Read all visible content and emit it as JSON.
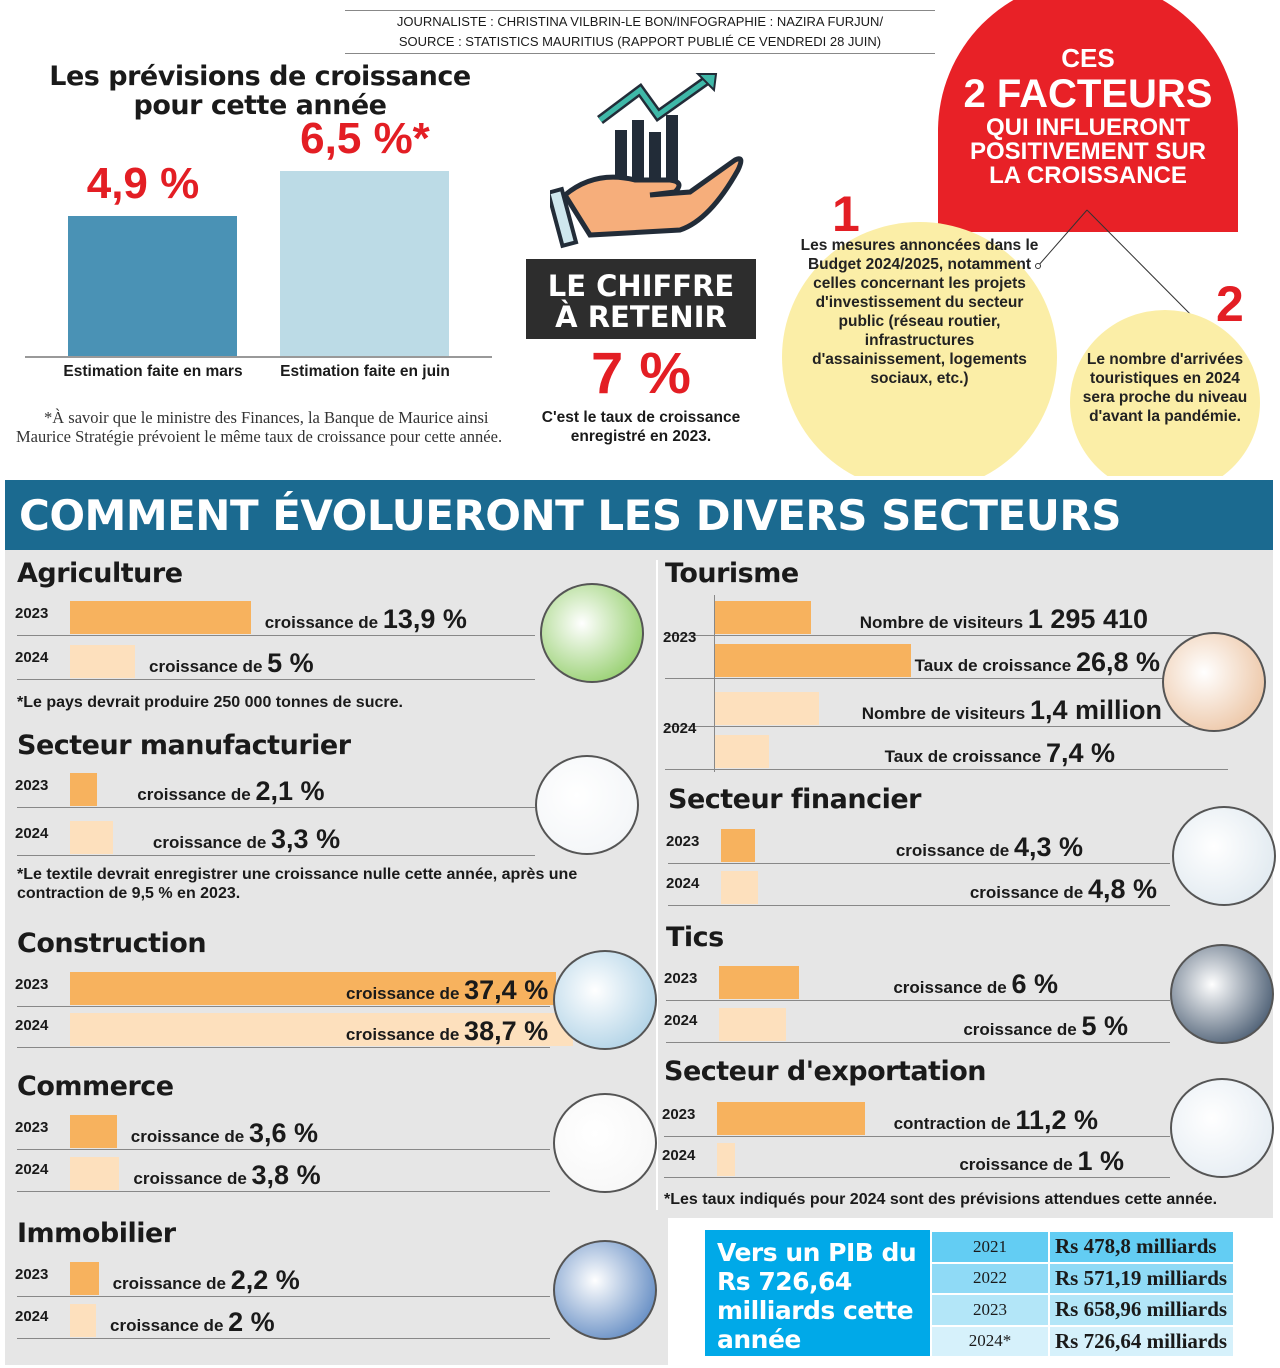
{
  "credit": {
    "line1": "JOURNALISTE : CHRISTINA VILBRIN-LE BON/INFOGRAPHIE : NAZIRA FURJUN/",
    "line2": "SOURCE : STATISTICS MAURITIUS (RAPPORT PUBLIÉ CE VENDREDI 28 JUIN)"
  },
  "forecast": {
    "title_line1": "Les prévisions de croissance",
    "title_line2": "pour cette année",
    "note": "*À savoir que le ministre des Finances, la Banque de Maurice ainsi Maurice Stratégie prévoient le même taux de croissance pour cette année."
  },
  "key_figure": {
    "label_line1": "LE CHIFFRE",
    "label_line2": "À RETENIR",
    "value": "7 %",
    "caption": "C'est le taux de croissance enregistré en 2023."
  },
  "factors": {
    "title_line1": "CES",
    "title_line2": "2 FACTEURS",
    "title_line3": "QUI INFLUERONT POSITIVEMENT SUR LA CROISSANCE",
    "items": [
      {
        "number": "1",
        "text": "Les mesures annoncées dans le Budget 2024/2025, notamment celles concernant les projets d'investissement du secteur public (réseau routier, infrastructures d'assainissement, logements sociaux, etc.)"
      },
      {
        "number": "2",
        "text": "Le nombre d'arrivées touristiques en 2024 sera proche du niveau d'avant la pandémie."
      }
    ]
  },
  "banner": "COMMENT ÉVOLUERONT LES DIVERS SECTEURS",
  "colors": {
    "bar_2023": "#f7b25e",
    "bar_2024": "#fde0bd",
    "banner": "#1b6a90",
    "accent_red": "#e31e24",
    "forecast_march": "#4a92b5",
    "forecast_june": "#bcdbe6",
    "pib_box": "#00a9e8"
  },
  "pib": {
    "title": "Vers un PIB du Rs 726,64 milliards cette année",
    "rows": [
      {
        "year": "2021",
        "value": "Rs 478,8 milliards"
      },
      {
        "year": "2022",
        "value": "Rs 571,19 milliards"
      },
      {
        "year": "2023",
        "value": "Rs 658,96 milliards"
      },
      {
        "year": "2024*",
        "value": "Rs 726,64 milliards"
      }
    ]
  },
  "chart_data": [
    {
      "type": "bar",
      "title": "Les prévisions de croissance pour cette année",
      "categories": [
        "Estimation faite en mars",
        "Estimation faite en juin"
      ],
      "values": [
        4.9,
        6.5
      ],
      "data_labels": [
        "4,9 %",
        "6,5 %*"
      ],
      "unit": "%"
    },
    {
      "type": "bar",
      "sectors": [
        {
          "name": "Agriculture",
          "rows": [
            {
              "year": "2023",
              "prefix": "croissance de",
              "value": 13.9,
              "label": "13,9 %"
            },
            {
              "year": "2024",
              "prefix": "croissance de",
              "value": 5,
              "label": "5 %"
            }
          ],
          "note": "*Le pays devrait produire 250 000 tonnes de sucre."
        },
        {
          "name": "Secteur manufacturier",
          "rows": [
            {
              "year": "2023",
              "prefix": "croissance de",
              "value": 2.1,
              "label": "2,1 %"
            },
            {
              "year": "2024",
              "prefix": "croissance de",
              "value": 3.3,
              "label": "3,3 %"
            }
          ],
          "note": "*Le textile devrait enregistrer une croissance nulle cette année, après une contraction de 9,5 % en 2023."
        },
        {
          "name": "Construction",
          "rows": [
            {
              "year": "2023",
              "prefix": "croissance de",
              "value": 37.4,
              "label": "37,4 %"
            },
            {
              "year": "2024",
              "prefix": "croissance de",
              "value": 38.7,
              "label": "38,7 %"
            }
          ]
        },
        {
          "name": "Commerce",
          "rows": [
            {
              "year": "2023",
              "prefix": "croissance de",
              "value": 3.6,
              "label": "3,6 %"
            },
            {
              "year": "2024",
              "prefix": "croissance de",
              "value": 3.8,
              "label": "3,8 %"
            }
          ]
        },
        {
          "name": "Immobilier",
          "rows": [
            {
              "year": "2023",
              "prefix": "croissance de",
              "value": 2.2,
              "label": "2,2 %"
            },
            {
              "year": "2024",
              "prefix": "croissance de",
              "value": 2,
              "label": "2 %"
            }
          ]
        },
        {
          "name": "Tourisme",
          "rows": [
            {
              "year": "2023",
              "prefix": "Nombre de visiteurs",
              "value": 1295410,
              "label": "1 295 410"
            },
            {
              "year": "",
              "prefix": "Taux de croissance",
              "value": 26.8,
              "label": "26,8 %"
            },
            {
              "year": "2024",
              "prefix": "Nombre de visiteurs",
              "value": 1400000,
              "label": "1,4 million"
            },
            {
              "year": "",
              "prefix": "Taux de croissance",
              "value": 7.4,
              "label": "7,4 %"
            }
          ]
        },
        {
          "name": "Secteur financier",
          "rows": [
            {
              "year": "2023",
              "prefix": "croissance de",
              "value": 4.3,
              "label": "4,3 %"
            },
            {
              "year": "2024",
              "prefix": "croissance de",
              "value": 4.8,
              "label": "4,8 %"
            }
          ]
        },
        {
          "name": "Tics",
          "rows": [
            {
              "year": "2023",
              "prefix": "croissance de",
              "value": 6,
              "label": "6 %"
            },
            {
              "year": "2024",
              "prefix": "croissance de",
              "value": 5,
              "label": "5 %"
            }
          ]
        },
        {
          "name": "Secteur d'exportation",
          "rows": [
            {
              "year": "2023",
              "prefix": "contraction de",
              "value": -11.2,
              "label": "11,2 %"
            },
            {
              "year": "2024",
              "prefix": "croissance de",
              "value": 1,
              "label": "1 %"
            }
          ],
          "note": "*Les taux indiqués pour 2024 sont des prévisions attendues cette année."
        }
      ]
    }
  ]
}
